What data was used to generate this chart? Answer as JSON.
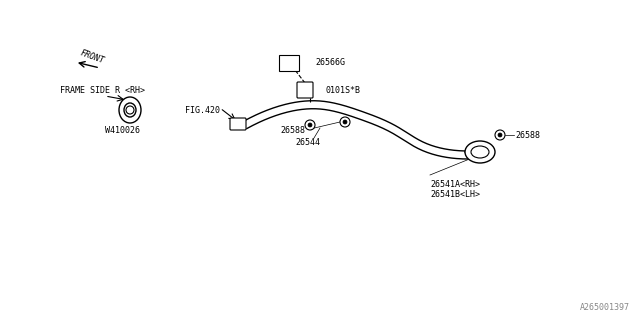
{
  "bg_color": "#ffffff",
  "line_color": "#000000",
  "text_color": "#000000",
  "part_color": "#555555",
  "watermark": "A265001397",
  "labels": {
    "frame_side": "FRAME SIDE R <RH>",
    "w410026": "W410026",
    "fig420": "FIG.420",
    "part26544": "26544",
    "part26588_left": "26588",
    "part26588_right": "26588",
    "part26541": "26541A<RH>\n26541B<LH>",
    "part0101": "0101S*B",
    "part26566": "26566G",
    "front_label": "FRONT"
  }
}
